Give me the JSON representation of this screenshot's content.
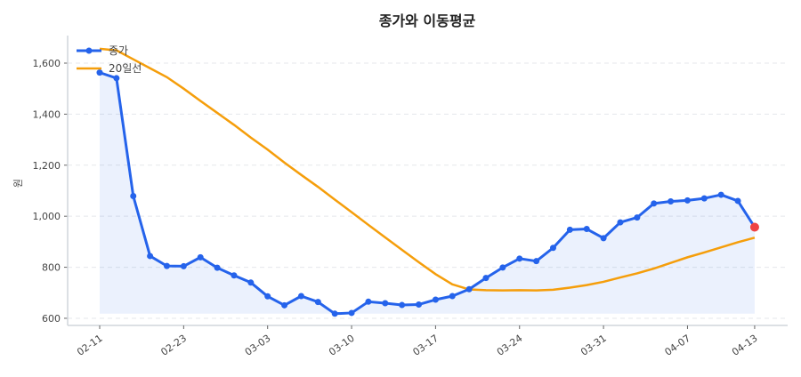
{
  "chart_data": {
    "type": "line",
    "title": "종가와 이동평균",
    "xlabel": "",
    "ylabel": "원",
    "ylim": [
      572,
      1708
    ],
    "yticks": [
      600,
      800,
      1000,
      1200,
      1400,
      1600
    ],
    "ytick_labels": [
      "600",
      "800",
      "1,000",
      "1,200",
      "1,400",
      "1,600"
    ],
    "xtick_labels": [
      "02-11",
      "02-23",
      "03-03",
      "03-10",
      "03-17",
      "03-24",
      "03-31",
      "04-07",
      "04-13"
    ],
    "xtick_index": [
      0,
      5,
      10,
      15,
      20,
      25,
      30,
      35,
      39
    ],
    "grid": "horizontal dashed",
    "legend": "top-left",
    "series": [
      {
        "name": "종가",
        "color": "#2563eb",
        "markers": true,
        "fill": true,
        "last_point_color": "#ef4444",
        "values": [
          1563,
          1541,
          1079,
          844,
          805,
          804,
          839,
          798,
          768,
          740,
          686,
          651,
          687,
          664,
          618,
          621,
          665,
          659,
          652,
          654,
          673,
          687,
          714,
          758,
          799,
          834,
          824,
          876,
          947,
          950,
          914,
          976,
          995,
          1050,
          1058,
          1062,
          1070,
          1084,
          1060,
          957
        ]
      },
      {
        "name": "20일선",
        "color": "#f59e0b",
        "markers": false,
        "values": [
          1656,
          1650,
          1615,
          1580,
          1545,
          1500,
          1452,
          1405,
          1358,
          1308,
          1261,
          1210,
          1162,
          1115,
          1065,
          1016,
          966,
          917,
          868,
          820,
          773,
          733,
          713,
          710,
          709,
          710,
          709,
          712,
          720,
          730,
          743,
          760,
          776,
          795,
          817,
          839,
          858,
          878,
          898,
          916
        ]
      }
    ]
  }
}
